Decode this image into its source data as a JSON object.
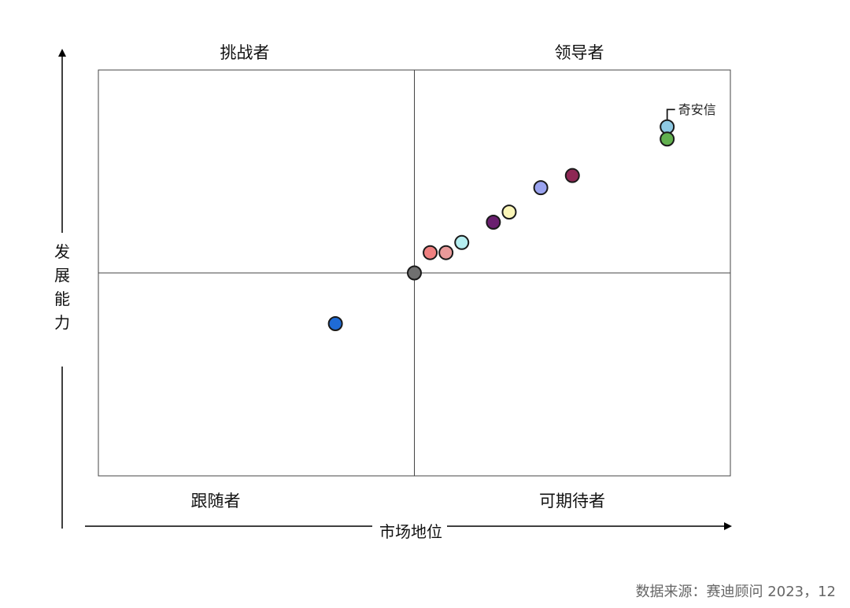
{
  "chart_data": {
    "type": "scatter",
    "title": "",
    "xlabel": "市场地位",
    "ylabel": "发展能力",
    "xlim": [
      0,
      10
    ],
    "ylim": [
      0,
      10
    ],
    "grid": false,
    "quadrant_divider": {
      "x": 5,
      "y": 5
    },
    "quadrants": {
      "top_left": "挑战者",
      "top_right": "领导者",
      "bottom_left": "跟随者",
      "bottom_right": "可期待者"
    },
    "points": [
      {
        "label": "奇安信",
        "x": 9.0,
        "y": 8.6,
        "color": "#8ec9e3"
      },
      {
        "label": "",
        "x": 9.0,
        "y": 8.3,
        "color": "#62b04f"
      },
      {
        "label": "",
        "x": 7.5,
        "y": 7.4,
        "color": "#8e2754"
      },
      {
        "label": "",
        "x": 7.0,
        "y": 7.1,
        "color": "#9aa3ef"
      },
      {
        "label": "",
        "x": 6.5,
        "y": 6.5,
        "color": "#fbf6b8"
      },
      {
        "label": "",
        "x": 6.25,
        "y": 6.25,
        "color": "#6a1f6f"
      },
      {
        "label": "",
        "x": 5.75,
        "y": 5.75,
        "color": "#b5eef0"
      },
      {
        "label": "",
        "x": 5.25,
        "y": 5.5,
        "color": "#ef8080"
      },
      {
        "label": "",
        "x": 5.5,
        "y": 5.5,
        "color": "#e99a9a"
      },
      {
        "label": "",
        "x": 5.0,
        "y": 5.0,
        "color": "#707070"
      },
      {
        "label": "",
        "x": 3.75,
        "y": 3.75,
        "color": "#1f6bd6"
      }
    ]
  },
  "source_text": "数据来源：赛迪顾问 2023，12"
}
